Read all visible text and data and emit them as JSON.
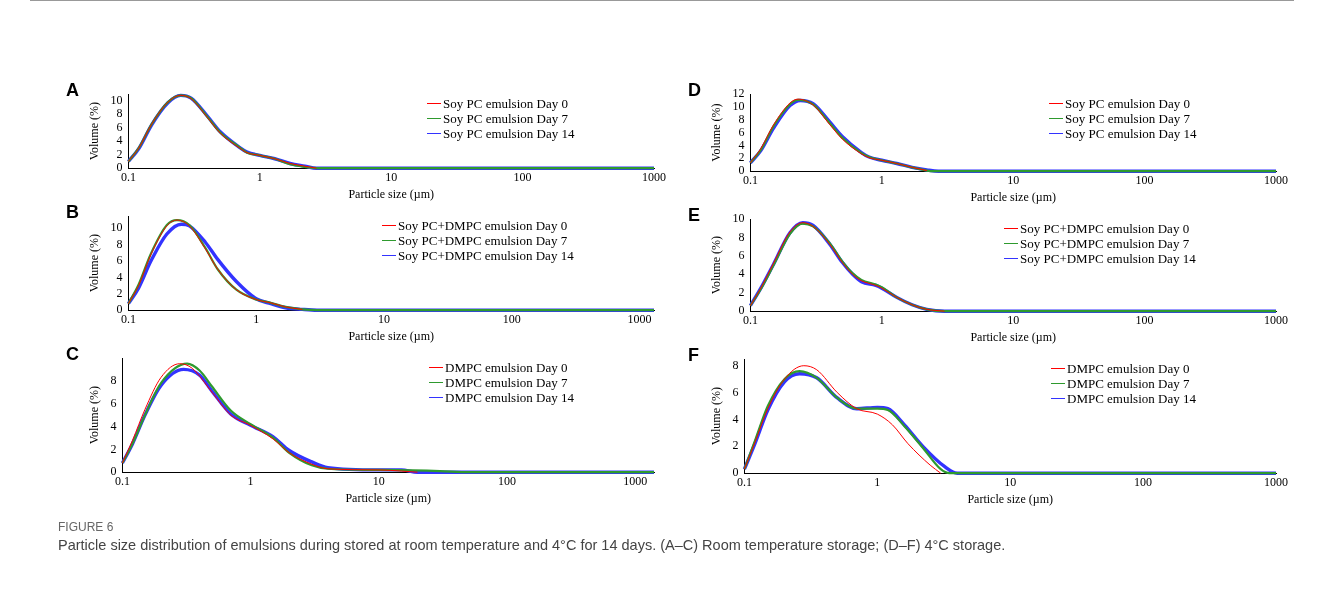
{
  "chart_data": [
    {
      "type": "line",
      "title": "A",
      "xlabel": "Particle size (µm)",
      "ylabel": "Volume (%)",
      "log": "x",
      "xlim": [
        0.1,
        1000
      ],
      "xticks": [
        0.1,
        1,
        10,
        100,
        1000
      ],
      "ylim": [
        0,
        11
      ],
      "yticks": [
        0,
        2,
        4,
        6,
        8,
        10
      ],
      "grid": false,
      "legend": "top right",
      "marker": "none",
      "annotations": [
        "FIGURE 6",
        "Particle size distribution of emulsions during stored at room temperature and 4°C for 14 days. (A–C) Room temperature storage; (D–F) 4°C storage."
      ],
      "series": [
        {
          "name": "Soy PC emulsion Day 0",
          "color": "#ff0000",
          "x": [
            0.1,
            0.12,
            0.15,
            0.2,
            0.25,
            0.3,
            0.4,
            0.5,
            0.7,
            0.8,
            1,
            1.3,
            1.7,
            2.2,
            2.7
          ],
          "values": [
            1.0,
            3.0,
            6.5,
            9.8,
            10.8,
            10.3,
            7.5,
            5.2,
            3.0,
            2.3,
            1.9,
            1.4,
            0.7,
            0.3,
            0
          ]
        },
        {
          "name": "Soy PC emulsion Day 7",
          "color": "#2e9a2e",
          "x": [
            0.1,
            0.12,
            0.15,
            0.2,
            0.25,
            0.3,
            0.4,
            0.5,
            0.7,
            0.8,
            1,
            1.3,
            1.7,
            2.2,
            2.7,
            1000
          ],
          "values": [
            1.0,
            3.0,
            6.5,
            9.8,
            10.8,
            10.4,
            7.6,
            5.3,
            3.1,
            2.3,
            1.9,
            1.4,
            0.6,
            0.2,
            0,
            0
          ]
        },
        {
          "name": "Soy PC emulsion Day 14",
          "color": "#3333ff",
          "x": [
            0.1,
            0.12,
            0.15,
            0.2,
            0.25,
            0.3,
            0.4,
            0.5,
            0.7,
            0.8,
            1,
            1.3,
            1.7,
            2.2,
            2.7,
            1000
          ],
          "values": [
            1.0,
            2.9,
            6.4,
            9.7,
            10.8,
            10.4,
            7.7,
            5.4,
            3.1,
            2.4,
            1.9,
            1.4,
            0.7,
            0.3,
            0,
            0
          ]
        }
      ]
    },
    {
      "type": "line",
      "title": "B",
      "xlabel": "Particle size (µm)",
      "ylabel": "Volume (%)",
      "log": "x",
      "xlim": [
        0.1,
        1300
      ],
      "xticks": [
        0.1,
        1,
        10,
        100,
        1000
      ],
      "ylim": [
        0,
        11.5
      ],
      "yticks": [
        0,
        2,
        4,
        6,
        8,
        10
      ],
      "grid": false,
      "legend": "top right",
      "marker": "none",
      "series": [
        {
          "name": "Soy PC+DMPC emulsion Day 0",
          "color": "#ff0000",
          "x": [
            0.1,
            0.12,
            0.15,
            0.2,
            0.24,
            0.3,
            0.4,
            0.5,
            0.7,
            1,
            1.3,
            1.7,
            2.3
          ],
          "values": [
            0.8,
            3.0,
            6.8,
            10.3,
            11.0,
            10.3,
            7.5,
            5.0,
            2.5,
            1.3,
            0.9,
            0.4,
            0.1
          ]
        },
        {
          "name": "Soy PC+DMPC emulsion Day 7",
          "color": "#2e9a2e",
          "x": [
            0.1,
            0.12,
            0.15,
            0.2,
            0.24,
            0.3,
            0.4,
            0.5,
            0.7,
            1,
            1.3,
            1.7,
            2.3,
            3,
            1300
          ],
          "values": [
            0.8,
            3.1,
            6.9,
            10.4,
            11.0,
            10.4,
            7.6,
            5.0,
            2.5,
            1.3,
            0.9,
            0.4,
            0.1,
            0,
            0
          ]
        },
        {
          "name": "Soy PC+DMPC emulsion Day 14",
          "color": "#3333ff",
          "x": [
            0.1,
            0.12,
            0.15,
            0.2,
            0.26,
            0.3,
            0.4,
            0.5,
            0.7,
            1,
            1.3,
            1.7,
            2.3,
            3,
            1300
          ],
          "values": [
            0.8,
            2.7,
            6.0,
            9.3,
            10.5,
            10.3,
            8.3,
            6.2,
            3.5,
            1.4,
            0.8,
            0.3,
            0.1,
            0,
            0
          ]
        }
      ]
    },
    {
      "type": "line",
      "title": "C",
      "xlabel": "Particle size (µm)",
      "ylabel": "Volume (%)",
      "log": "x",
      "xlim": [
        0.1,
        1400
      ],
      "xticks": [
        0.1,
        1,
        10,
        100,
        1000
      ],
      "ylim": [
        0,
        10
      ],
      "yticks": [
        0,
        2,
        4,
        6,
        8
      ],
      "grid": false,
      "legend": "top right",
      "marker": "none",
      "series": [
        {
          "name": "DMPC emulsion Day 0",
          "color": "#ff0000",
          "x": [
            0.1,
            0.12,
            0.15,
            0.2,
            0.28,
            0.35,
            0.5,
            0.7,
            1,
            1.5,
            2,
            3,
            4,
            10,
            15,
            20
          ],
          "values": [
            0.8,
            2.8,
            5.5,
            8.3,
            9.5,
            9.1,
            7.0,
            5.0,
            4.1,
            2.9,
            1.7,
            0.7,
            0.3,
            0.2,
            0.1,
            0
          ]
        },
        {
          "name": "DMPC emulsion Day 7",
          "color": "#2e9a2e",
          "x": [
            0.1,
            0.12,
            0.15,
            0.2,
            0.32,
            0.4,
            0.5,
            0.7,
            1,
            1.5,
            2,
            3,
            4,
            10,
            30,
            50,
            1400
          ],
          "values": [
            0.8,
            2.5,
            5.0,
            7.8,
            9.5,
            8.9,
            7.5,
            5.4,
            4.2,
            3.0,
            1.7,
            0.6,
            0.3,
            0.2,
            0.1,
            0,
            0
          ]
        },
        {
          "name": "DMPC emulsion Day 14",
          "color": "#3333ff",
          "x": [
            0.1,
            0.12,
            0.15,
            0.2,
            0.3,
            0.4,
            0.5,
            0.7,
            1,
            1.5,
            2,
            3,
            4,
            10,
            15,
            20,
            1400
          ],
          "values": [
            0.8,
            2.5,
            5.0,
            7.6,
            9.0,
            8.5,
            7.1,
            5.1,
            4.1,
            3.1,
            1.9,
            0.9,
            0.4,
            0.2,
            0.2,
            0,
            0
          ]
        }
      ]
    },
    {
      "type": "line",
      "title": "D",
      "xlabel": "Particle size (µm)",
      "ylabel": "Volume (%)",
      "log": "x",
      "xlim": [
        0.1,
        1000
      ],
      "xticks": [
        0.1,
        1,
        10,
        100,
        1000
      ],
      "ylim": [
        0,
        12
      ],
      "yticks": [
        0,
        2,
        4,
        6,
        8,
        10,
        12
      ],
      "grid": false,
      "legend": "top right",
      "marker": "none",
      "series": [
        {
          "name": "Soy PC emulsion Day 0",
          "color": "#ff0000",
          "x": [
            0.1,
            0.12,
            0.15,
            0.2,
            0.23,
            0.3,
            0.4,
            0.5,
            0.7,
            0.8,
            1,
            1.3,
            1.7,
            2.2
          ],
          "values": [
            1.3,
            3.5,
            7.2,
            10.6,
            11.2,
            10.3,
            7.3,
            5.0,
            2.7,
            2.1,
            1.7,
            1.2,
            0.6,
            0.1
          ]
        },
        {
          "name": "Soy PC emulsion Day 7",
          "color": "#2e9a2e",
          "x": [
            0.1,
            0.12,
            0.15,
            0.2,
            0.23,
            0.3,
            0.4,
            0.5,
            0.7,
            0.8,
            1,
            1.3,
            1.7,
            2.2,
            2.5,
            1000
          ],
          "values": [
            1.3,
            3.3,
            7.0,
            10.4,
            11.1,
            10.4,
            7.5,
            5.2,
            2.8,
            2.2,
            1.7,
            1.2,
            0.6,
            0.1,
            0,
            0
          ]
        },
        {
          "name": "Soy PC emulsion Day 14",
          "color": "#3333ff",
          "x": [
            0.1,
            0.12,
            0.15,
            0.2,
            0.24,
            0.3,
            0.4,
            0.5,
            0.7,
            0.8,
            1,
            1.3,
            1.7,
            2.2,
            2.7,
            1000
          ],
          "values": [
            1.3,
            3.2,
            6.7,
            10.2,
            11.0,
            10.5,
            7.7,
            5.4,
            2.9,
            2.2,
            1.7,
            1.2,
            0.6,
            0.2,
            0,
            0
          ]
        }
      ]
    },
    {
      "type": "line",
      "title": "E",
      "xlabel": "Particle size (µm)",
      "ylabel": "Volume (%)",
      "log": "x",
      "xlim": [
        0.1,
        1000
      ],
      "xticks": [
        0.1,
        1,
        10,
        100,
        1000
      ],
      "ylim": [
        0,
        10
      ],
      "yticks": [
        0,
        2,
        4,
        6,
        8,
        10
      ],
      "grid": false,
      "legend": "top right",
      "marker": "none",
      "series": [
        {
          "name": "Soy PC+DMPC emulsion Day 0",
          "color": "#ff0000",
          "x": [
            0.1,
            0.12,
            0.15,
            0.2,
            0.25,
            0.3,
            0.4,
            0.5,
            0.6,
            0.7,
            0.9,
            1,
            1.3,
            1.7,
            2.2,
            3
          ],
          "values": [
            0.6,
            2.5,
            5.2,
            8.6,
            9.6,
            9.2,
            7.3,
            5.3,
            4.0,
            3.3,
            2.8,
            2.5,
            1.5,
            0.7,
            0.2,
            0
          ]
        },
        {
          "name": "Soy PC+DMPC emulsion Day 7",
          "color": "#2e9a2e",
          "x": [
            0.1,
            0.12,
            0.15,
            0.2,
            0.25,
            0.3,
            0.4,
            0.5,
            0.6,
            0.7,
            0.9,
            1,
            1.3,
            1.7,
            2.2,
            3,
            1000
          ],
          "values": [
            0.6,
            2.4,
            5.0,
            8.4,
            9.5,
            9.2,
            7.4,
            5.4,
            4.1,
            3.4,
            2.9,
            2.6,
            1.5,
            0.7,
            0.2,
            0,
            0
          ]
        },
        {
          "name": "Soy PC+DMPC emulsion Day 14",
          "color": "#3333ff",
          "x": [
            0.1,
            0.12,
            0.15,
            0.2,
            0.25,
            0.3,
            0.4,
            0.5,
            0.6,
            0.7,
            0.9,
            1,
            1.3,
            1.7,
            2.2,
            3,
            1000
          ],
          "values": [
            0.6,
            2.5,
            5.1,
            8.5,
            9.6,
            9.3,
            7.3,
            5.3,
            4.0,
            3.2,
            2.8,
            2.5,
            1.5,
            0.7,
            0.2,
            0,
            0
          ]
        }
      ]
    },
    {
      "type": "line",
      "title": "F",
      "xlabel": "Particle size (µm)",
      "ylabel": "Volume (%)",
      "log": "x",
      "xlim": [
        0.1,
        1000
      ],
      "xticks": [
        0.1,
        1,
        10,
        100,
        1000
      ],
      "ylim": [
        0,
        8.5
      ],
      "yticks": [
        0,
        2,
        4,
        6,
        8
      ],
      "grid": false,
      "legend": "top right",
      "marker": "none",
      "series": [
        {
          "name": "DMPC emulsion Day 0",
          "color": "#ff0000",
          "x": [
            0.1,
            0.12,
            0.15,
            0.2,
            0.28,
            0.35,
            0.5,
            0.7,
            1,
            1.3,
            1.7,
            2.5,
            3
          ],
          "values": [
            0.3,
            2.3,
            4.8,
            7.0,
            8.0,
            7.7,
            6.0,
            4.8,
            4.4,
            3.6,
            2.2,
            0.6,
            0
          ]
        },
        {
          "name": "DMPC emulsion Day 7",
          "color": "#2e9a2e",
          "x": [
            0.1,
            0.12,
            0.15,
            0.2,
            0.26,
            0.35,
            0.5,
            0.7,
            1,
            1.2,
            1.6,
            2.2,
            3,
            3.5,
            1000
          ],
          "values": [
            0.3,
            2.4,
            5.0,
            7.0,
            7.6,
            7.1,
            5.6,
            4.8,
            4.8,
            4.7,
            3.5,
            1.9,
            0.3,
            0,
            0
          ]
        },
        {
          "name": "DMPC emulsion Day 14",
          "color": "#3333ff",
          "x": [
            0.1,
            0.12,
            0.15,
            0.2,
            0.26,
            0.35,
            0.5,
            0.7,
            1,
            1.2,
            1.6,
            2.2,
            3.2,
            4,
            1000
          ],
          "values": [
            0.3,
            2.2,
            4.7,
            6.8,
            7.4,
            7.1,
            5.6,
            4.8,
            4.9,
            4.8,
            3.6,
            2.0,
            0.5,
            0,
            0
          ]
        }
      ]
    }
  ]
}
